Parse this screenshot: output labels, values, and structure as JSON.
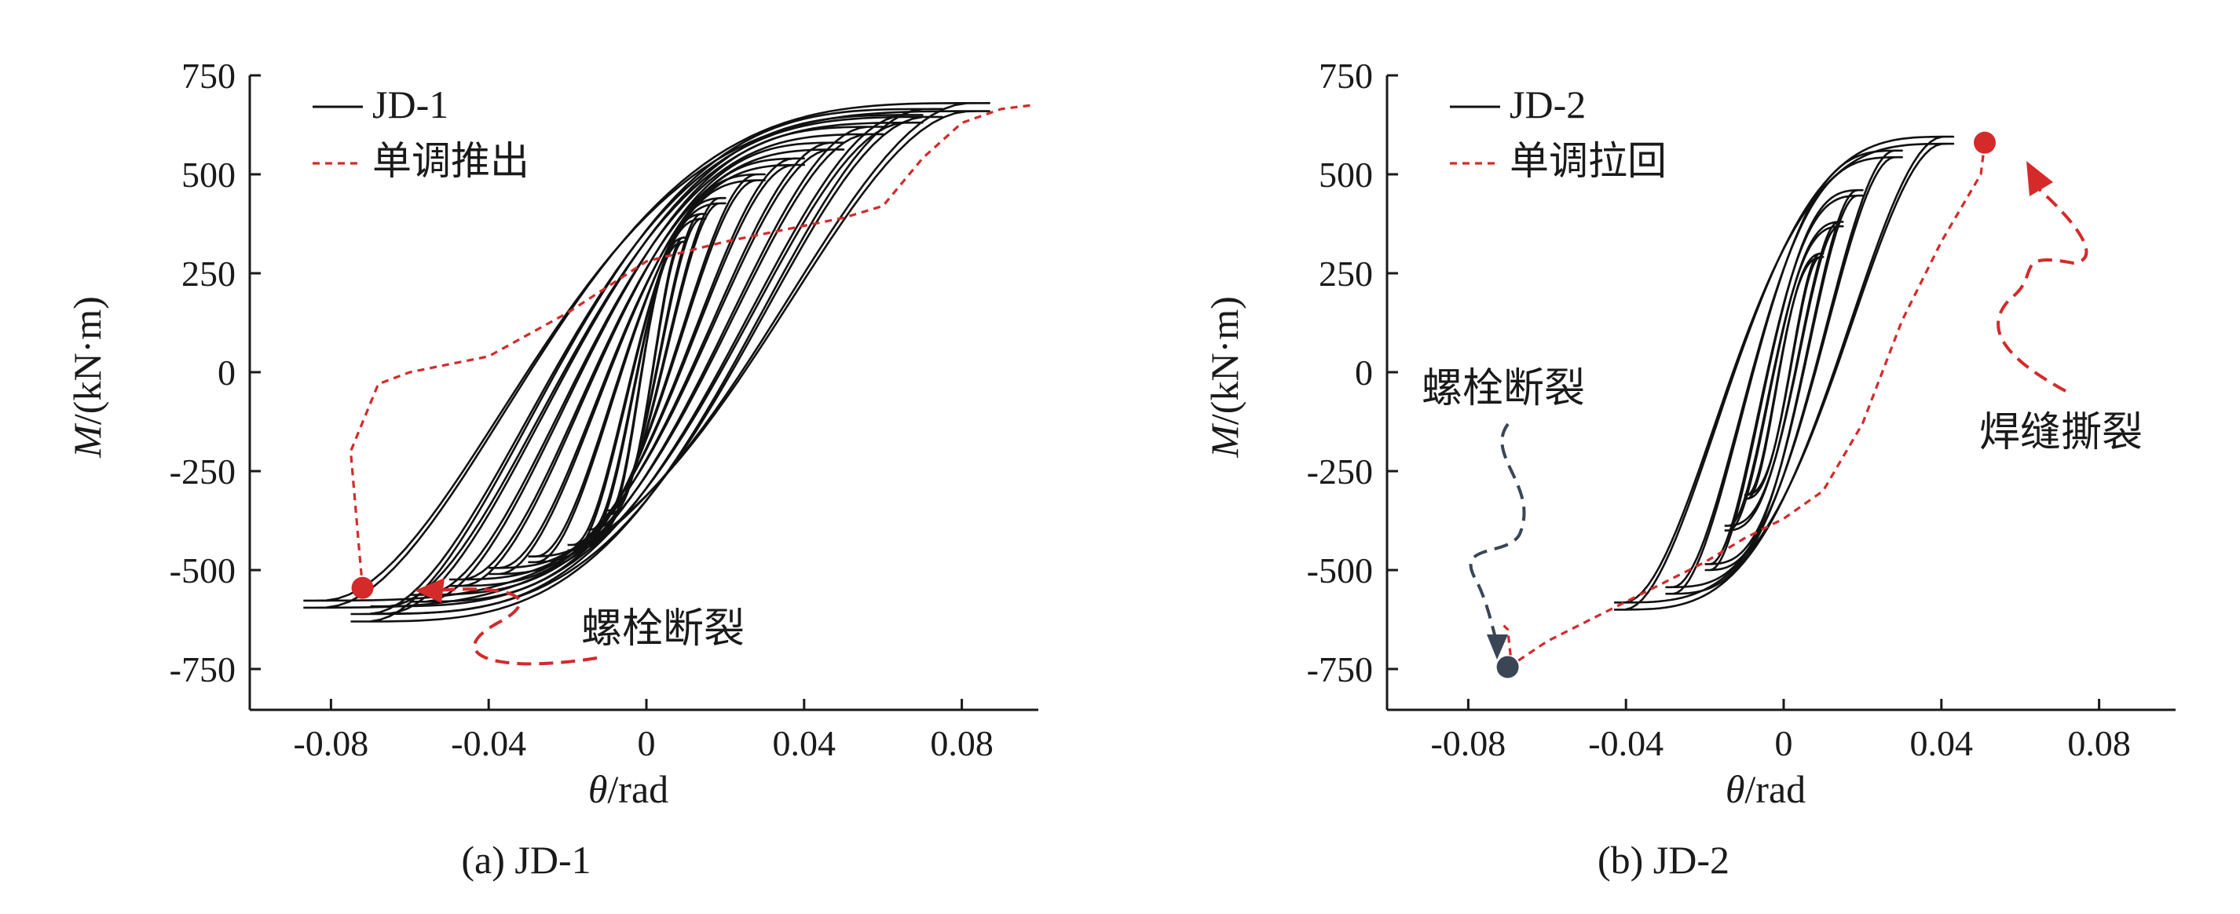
{
  "colors": {
    "hysteresis": "#111111",
    "monotonic": "#d42a2a",
    "bolt_marker_b": "#3a4656",
    "arrow_dark": "#3a4656"
  },
  "chart_data": [
    {
      "type": "line",
      "caption": "(a) JD-1",
      "xlabel_symbol": "θ",
      "xlabel_unit": "/rad",
      "ylabel_symbol": "M",
      "ylabel_unit": "/(kN·m)",
      "xlim": [
        -0.1,
        0.1
      ],
      "ylim": [
        -850,
        750
      ],
      "xticks": [
        -0.08,
        -0.04,
        0,
        0.04,
        0.08
      ],
      "xtick_labels": [
        "-0.08",
        "-0.04",
        "0",
        "0.04",
        "0.08"
      ],
      "yticks": [
        750,
        500,
        250,
        0,
        -250,
        -500,
        -750
      ],
      "ytick_labels": [
        "750",
        "500",
        "250",
        "0",
        "-250",
        "-500",
        "-750"
      ],
      "legend_position": "top-left",
      "series": [
        {
          "name": "JD-1",
          "style": "solid",
          "cycles": [
            {
              "amp": 0.01,
              "mmax": 340,
              "mmin": -360
            },
            {
              "amp": 0.015,
              "mmax": 400,
              "mmin": -410
            },
            {
              "amp": 0.02,
              "mmax": 440,
              "mmin": -450
            },
            {
              "amp": 0.03,
              "mmax": 500,
              "mmin": -480
            },
            {
              "amp": 0.04,
              "mmax": 540,
              "mmin": -510
            },
            {
              "amp": 0.05,
              "mmax": 580,
              "mmin": -540
            },
            {
              "amp": 0.06,
              "mmax": 620,
              "mmin": -580
            },
            {
              "amp": 0.07,
              "mmax": 650,
              "mmin": -610
            },
            {
              "amp": 0.075,
              "mmax": 665,
              "mmin": -630
            },
            {
              "amp": 0.087,
              "mmax": 680,
              "mmin": -595
            }
          ]
        },
        {
          "name": "单调推出",
          "style": "dashed",
          "x": [
            -0.072,
            -0.073,
            -0.075,
            -0.068,
            -0.06,
            -0.04,
            -0.02,
            0,
            0.02,
            0.04,
            0.05,
            0.06,
            0.07,
            0.08,
            0.09,
            0.098
          ],
          "y": [
            -545,
            -430,
            -200,
            -30,
            0,
            40,
            150,
            280,
            330,
            370,
            390,
            420,
            540,
            630,
            665,
            675
          ]
        }
      ],
      "markers": [
        {
          "x": -0.072,
          "y": -545,
          "label": "螺栓断裂"
        }
      ]
    },
    {
      "type": "line",
      "caption": "(b) JD-2",
      "xlabel_symbol": "θ",
      "xlabel_unit": "/rad",
      "ylabel_symbol": "M",
      "ylabel_unit": "/(kN·m)",
      "xlim": [
        -0.1,
        0.1
      ],
      "ylim": [
        -850,
        750
      ],
      "xticks": [
        -0.08,
        -0.04,
        0,
        0.04,
        0.08
      ],
      "xtick_labels": [
        "-0.08",
        "-0.04",
        "0",
        "0.04",
        "0.08"
      ],
      "yticks": [
        750,
        500,
        250,
        0,
        -250,
        -500,
        -750
      ],
      "ytick_labels": [
        "750",
        "500",
        "250",
        "0",
        "-250",
        "-500",
        "-750"
      ],
      "legend_position": "top-left",
      "series": [
        {
          "name": "JD-2",
          "style": "solid",
          "cycles": [
            {
              "amp": 0.01,
              "mmax": 300,
              "mmin": -320
            },
            {
              "amp": 0.015,
              "mmax": 380,
              "mmin": -400
            },
            {
              "amp": 0.02,
              "mmax": 460,
              "mmin": -500
            },
            {
              "amp": 0.03,
              "mmax": 560,
              "mmin": -560
            },
            {
              "amp": 0.043,
              "mmax": 595,
              "mmin": -600
            }
          ]
        },
        {
          "name": "单调拉回",
          "style": "dashed",
          "x": [
            0.051,
            0.05,
            0.04,
            0.03,
            0.02,
            0.01,
            0,
            -0.01,
            -0.02,
            -0.03,
            -0.04,
            -0.05,
            -0.06,
            -0.069,
            -0.07,
            -0.071
          ],
          "y": [
            580,
            500,
            330,
            130,
            -130,
            -300,
            -370,
            -420,
            -480,
            -530,
            -580,
            -630,
            -680,
            -740,
            -650,
            -640
          ]
        }
      ],
      "markers": [
        {
          "x": 0.051,
          "y": 580,
          "label": "焊缝撕裂"
        },
        {
          "x": -0.07,
          "y": -745,
          "label": "螺栓断裂"
        }
      ]
    }
  ]
}
